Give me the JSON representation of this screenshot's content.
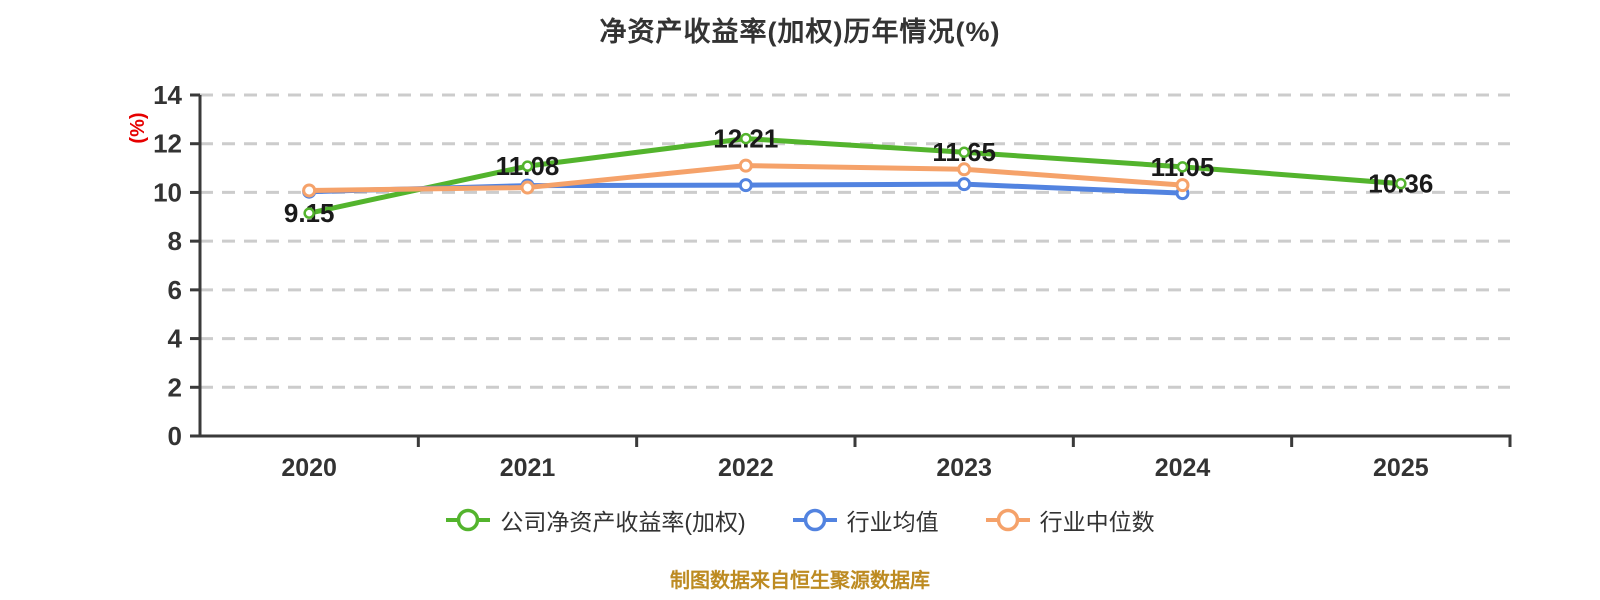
{
  "title": "净资产收益率(加权)历年情况(%)",
  "footer": {
    "text": "制图数据来自恒生聚源数据库",
    "color": "#bd8b22"
  },
  "colors": {
    "grid": "#cccccc",
    "axis": "#3a3a3a",
    "tick_text": "#333333",
    "value_label": "#1a1a1a",
    "y_axis_name": "#e60000",
    "background": "#ffffff"
  },
  "chart_data": {
    "type": "line",
    "title": "净资产收益率(加权)历年情况(%)",
    "y_axis_name": "(%)",
    "xlabel": "",
    "ylabel": "(%)",
    "ylim": [
      0,
      14
    ],
    "y_ticks": [
      0,
      2,
      4,
      6,
      8,
      10,
      12,
      14
    ],
    "grid": "horizontal-dashed",
    "legend_position": "bottom",
    "categories": [
      "2020",
      "2021",
      "2022",
      "2023",
      "2024",
      "2025"
    ],
    "series": [
      {
        "key": "company-roe",
        "name": "公司净资产收益率(加权)",
        "color": "#53b42d",
        "values": [
          9.15,
          11.08,
          12.21,
          11.65,
          11.05,
          10.36
        ],
        "data_labels": [
          "9.15",
          "11.08",
          "12.21",
          "11.65",
          "11.05",
          "10.36"
        ],
        "marker_radius": 4.5,
        "marker_stroke": 2.5
      },
      {
        "key": "industry-mean",
        "name": "行业均值",
        "color": "#5283e0",
        "values": [
          10.03,
          10.28,
          10.3,
          10.34,
          9.97
        ],
        "data_labels": [],
        "marker_radius": 5.5,
        "marker_stroke": 3
      },
      {
        "key": "industry-median",
        "name": "行业中位数",
        "color": "#f5a26a",
        "values": [
          10.08,
          10.2,
          11.1,
          10.95,
          10.3
        ],
        "data_labels": [],
        "marker_radius": 5.5,
        "marker_stroke": 3
      }
    ]
  }
}
